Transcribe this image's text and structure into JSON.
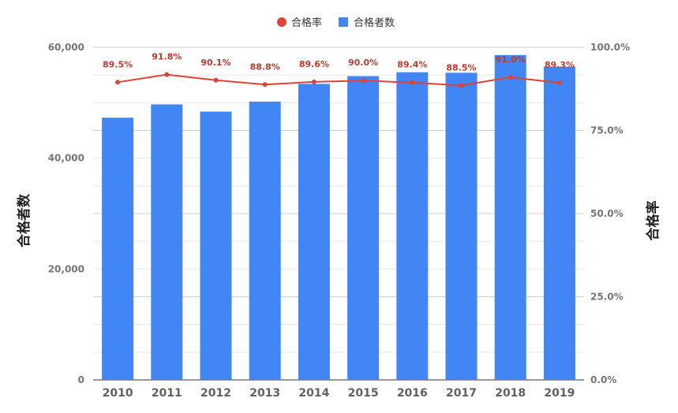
{
  "chart_data": {
    "type": "bar+line",
    "categories": [
      "2010",
      "2011",
      "2012",
      "2013",
      "2014",
      "2015",
      "2016",
      "2017",
      "2018",
      "2019"
    ],
    "series": [
      {
        "name": "合格者数",
        "type": "bar",
        "axis": "left",
        "color": "#4285f4",
        "values": [
          47300,
          49700,
          48400,
          50200,
          53400,
          54800,
          55500,
          55400,
          58600,
          56500
        ]
      },
      {
        "name": "合格率",
        "type": "line",
        "axis": "right",
        "color": "#db4437",
        "values": [
          89.5,
          91.8,
          90.1,
          88.8,
          89.6,
          90.0,
          89.4,
          88.5,
          91.0,
          89.3
        ],
        "labels": [
          "89.5%",
          "91.8%",
          "90.1%",
          "88.8%",
          "89.6%",
          "90.0%",
          "89.4%",
          "88.5%",
          "91.0%",
          "89.3%"
        ]
      }
    ],
    "ylabel_left": "合格者数",
    "ylabel_right": "合格率",
    "ylim_left": [
      0,
      60000
    ],
    "ylim_right": [
      0,
      100
    ],
    "yticks_left": [
      "0",
      "20,000",
      "40,000",
      "60,000"
    ],
    "yticks_right": [
      "0.0%",
      "25.0%",
      "50.0%",
      "75.0%",
      "100.0%"
    ],
    "legend_position": "top-center",
    "grid": true
  }
}
